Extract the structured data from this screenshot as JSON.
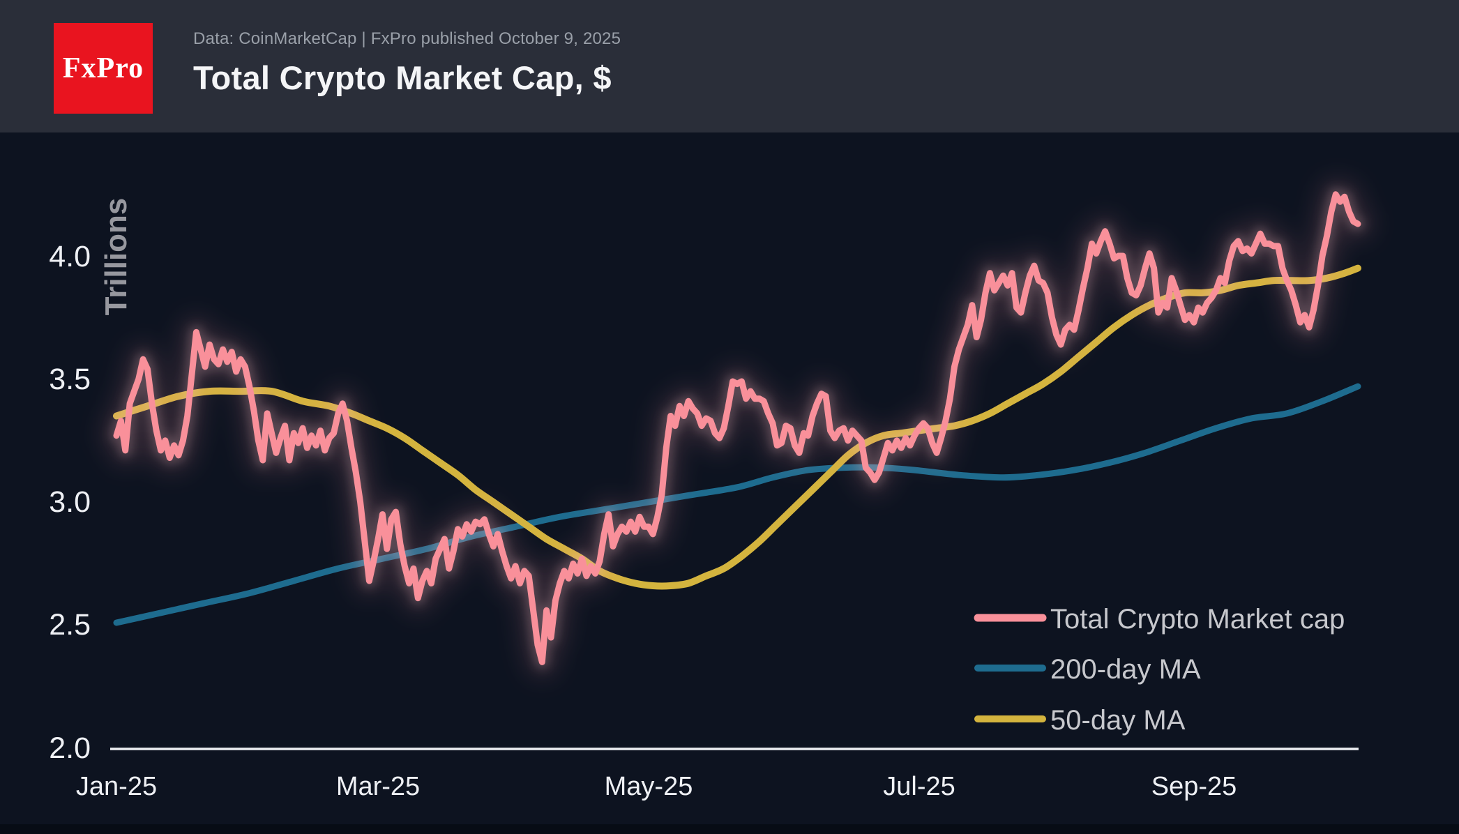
{
  "header": {
    "logo_text": "FxPro",
    "subtitle": "Data: CoinMarketCap | FxPro published October 9, 2025",
    "title": "Total Crypto Market Cap, $"
  },
  "colors": {
    "background": "#0d1320",
    "header_band": "#2a2e39",
    "footer_band": "#070c15",
    "logo_red": "#e9141f",
    "axis": "#edeff2",
    "tick_text": "#eef0f4",
    "unit_text": "#97989f",
    "legend_text": "#c7c8cd",
    "price_line": "#f9909a",
    "ma200_line": "#1e6c8f",
    "ma50_line": "#d4b43e"
  },
  "chart_data": {
    "type": "line",
    "title": "Total Crypto Market Cap, $",
    "unit_label": "Trillions",
    "x_start": "2025-01-01",
    "x_end": "2025-10-08",
    "x_range_days": 280,
    "x_tick_labels": [
      "Jan-25",
      "Mar-25",
      "May-25",
      "Jul-25",
      "Sep-25"
    ],
    "x_tick_days": [
      0,
      59,
      120,
      181,
      243
    ],
    "y_tick_labels": [
      "2.0",
      "2.5",
      "3.0",
      "3.5",
      "4.0"
    ],
    "y_tick_values": [
      2.0,
      2.5,
      3.0,
      3.5,
      4.0
    ],
    "ylim": [
      2.0,
      4.4
    ],
    "grid": false,
    "legend_position": "bottom-right",
    "series": [
      {
        "name": "Total Crypto Market cap",
        "color": "#f9909a",
        "kind": "daily",
        "glow": true,
        "values": [
          3.27,
          3.33,
          3.21,
          3.4,
          3.45,
          3.5,
          3.58,
          3.54,
          3.4,
          3.29,
          3.21,
          3.25,
          3.18,
          3.23,
          3.19,
          3.25,
          3.35,
          3.52,
          3.69,
          3.62,
          3.55,
          3.64,
          3.58,
          3.56,
          3.62,
          3.57,
          3.61,
          3.53,
          3.58,
          3.55,
          3.47,
          3.37,
          3.25,
          3.17,
          3.36,
          3.28,
          3.2,
          3.26,
          3.31,
          3.17,
          3.28,
          3.24,
          3.3,
          3.22,
          3.27,
          3.23,
          3.29,
          3.21,
          3.26,
          3.28,
          3.36,
          3.4,
          3.33,
          3.22,
          3.12,
          3.0,
          2.84,
          2.68,
          2.76,
          2.85,
          2.95,
          2.81,
          2.93,
          2.96,
          2.83,
          2.74,
          2.67,
          2.73,
          2.61,
          2.68,
          2.72,
          2.67,
          2.77,
          2.81,
          2.85,
          2.73,
          2.8,
          2.89,
          2.86,
          2.91,
          2.88,
          2.92,
          2.91,
          2.93,
          2.87,
          2.82,
          2.87,
          2.8,
          2.74,
          2.69,
          2.74,
          2.67,
          2.72,
          2.7,
          2.56,
          2.42,
          2.35,
          2.56,
          2.45,
          2.6,
          2.67,
          2.72,
          2.69,
          2.75,
          2.71,
          2.77,
          2.7,
          2.74,
          2.71,
          2.76,
          2.87,
          2.95,
          2.82,
          2.87,
          2.9,
          2.88,
          2.92,
          2.88,
          2.94,
          2.9,
          2.9,
          2.87,
          2.94,
          3.03,
          3.22,
          3.35,
          3.31,
          3.39,
          3.35,
          3.41,
          3.38,
          3.36,
          3.31,
          3.34,
          3.33,
          3.28,
          3.26,
          3.3,
          3.39,
          3.49,
          3.48,
          3.49,
          3.42,
          3.45,
          3.42,
          3.42,
          3.41,
          3.36,
          3.32,
          3.23,
          3.24,
          3.31,
          3.3,
          3.23,
          3.2,
          3.28,
          3.27,
          3.35,
          3.4,
          3.44,
          3.43,
          3.29,
          3.26,
          3.29,
          3.3,
          3.25,
          3.29,
          3.27,
          3.25,
          3.14,
          3.12,
          3.09,
          3.12,
          3.18,
          3.24,
          3.21,
          3.25,
          3.22,
          3.26,
          3.23,
          3.27,
          3.3,
          3.32,
          3.3,
          3.24,
          3.2,
          3.26,
          3.33,
          3.42,
          3.55,
          3.62,
          3.67,
          3.72,
          3.8,
          3.67,
          3.74,
          3.85,
          3.93,
          3.86,
          3.89,
          3.92,
          3.88,
          3.93,
          3.79,
          3.77,
          3.85,
          3.92,
          3.96,
          3.9,
          3.89,
          3.85,
          3.75,
          3.68,
          3.64,
          3.7,
          3.72,
          3.7,
          3.78,
          3.87,
          3.95,
          4.05,
          4.01,
          4.06,
          4.1,
          4.05,
          3.99,
          4.0,
          4.0,
          3.91,
          3.85,
          3.84,
          3.88,
          3.95,
          4.01,
          3.95,
          3.77,
          3.81,
          3.79,
          3.91,
          3.86,
          3.8,
          3.74,
          3.76,
          3.73,
          3.79,
          3.77,
          3.81,
          3.83,
          3.86,
          3.91,
          3.89,
          3.98,
          4.04,
          4.06,
          4.02,
          4.03,
          4.01,
          4.05,
          4.09,
          4.05,
          4.05,
          4.04,
          4.04,
          3.95,
          3.9,
          3.86,
          3.8,
          3.73,
          3.76,
          3.71,
          3.78,
          3.88,
          4.0,
          4.08,
          4.18,
          4.25,
          4.22,
          4.24,
          4.18,
          4.14,
          4.13
        ]
      },
      {
        "name": "200-day MA",
        "color": "#1e6c8f",
        "kind": "smooth",
        "glow": false,
        "points": [
          [
            0,
            2.51
          ],
          [
            10,
            2.55
          ],
          [
            20,
            2.59
          ],
          [
            30,
            2.63
          ],
          [
            40,
            2.68
          ],
          [
            50,
            2.73
          ],
          [
            60,
            2.77
          ],
          [
            70,
            2.81
          ],
          [
            80,
            2.86
          ],
          [
            90,
            2.9
          ],
          [
            100,
            2.94
          ],
          [
            110,
            2.97
          ],
          [
            120,
            3.0
          ],
          [
            130,
            3.03
          ],
          [
            140,
            3.06
          ],
          [
            148,
            3.1
          ],
          [
            156,
            3.13
          ],
          [
            164,
            3.14
          ],
          [
            172,
            3.14
          ],
          [
            180,
            3.13
          ],
          [
            190,
            3.11
          ],
          [
            200,
            3.1
          ],
          [
            208,
            3.11
          ],
          [
            216,
            3.13
          ],
          [
            224,
            3.16
          ],
          [
            232,
            3.2
          ],
          [
            240,
            3.25
          ],
          [
            248,
            3.3
          ],
          [
            256,
            3.34
          ],
          [
            264,
            3.36
          ],
          [
            272,
            3.41
          ],
          [
            280,
            3.47
          ]
        ]
      },
      {
        "name": "50-day MA",
        "color": "#d4b43e",
        "kind": "smooth",
        "glow": false,
        "points": [
          [
            0,
            3.35
          ],
          [
            7,
            3.39
          ],
          [
            14,
            3.43
          ],
          [
            21,
            3.45
          ],
          [
            28,
            3.45
          ],
          [
            35,
            3.45
          ],
          [
            42,
            3.41
          ],
          [
            48,
            3.39
          ],
          [
            53,
            3.36
          ],
          [
            57,
            3.33
          ],
          [
            61,
            3.3
          ],
          [
            65,
            3.26
          ],
          [
            69,
            3.21
          ],
          [
            73,
            3.16
          ],
          [
            77,
            3.11
          ],
          [
            81,
            3.05
          ],
          [
            85,
            3.0
          ],
          [
            89,
            2.95
          ],
          [
            93,
            2.9
          ],
          [
            97,
            2.85
          ],
          [
            101,
            2.81
          ],
          [
            105,
            2.77
          ],
          [
            109,
            2.72
          ],
          [
            113,
            2.69
          ],
          [
            117,
            2.67
          ],
          [
            121,
            2.66
          ],
          [
            125,
            2.66
          ],
          [
            129,
            2.67
          ],
          [
            133,
            2.7
          ],
          [
            137,
            2.73
          ],
          [
            141,
            2.78
          ],
          [
            145,
            2.84
          ],
          [
            149,
            2.91
          ],
          [
            153,
            2.98
          ],
          [
            157,
            3.05
          ],
          [
            161,
            3.12
          ],
          [
            165,
            3.19
          ],
          [
            169,
            3.24
          ],
          [
            173,
            3.27
          ],
          [
            177,
            3.28
          ],
          [
            181,
            3.29
          ],
          [
            185,
            3.3
          ],
          [
            189,
            3.31
          ],
          [
            193,
            3.33
          ],
          [
            197,
            3.36
          ],
          [
            201,
            3.4
          ],
          [
            205,
            3.44
          ],
          [
            209,
            3.48
          ],
          [
            213,
            3.53
          ],
          [
            217,
            3.59
          ],
          [
            221,
            3.65
          ],
          [
            225,
            3.71
          ],
          [
            229,
            3.76
          ],
          [
            233,
            3.8
          ],
          [
            237,
            3.83
          ],
          [
            241,
            3.85
          ],
          [
            245,
            3.85
          ],
          [
            249,
            3.86
          ],
          [
            253,
            3.88
          ],
          [
            257,
            3.89
          ],
          [
            261,
            3.9
          ],
          [
            265,
            3.9
          ],
          [
            269,
            3.9
          ],
          [
            273,
            3.91
          ],
          [
            277,
            3.93
          ],
          [
            280,
            3.95
          ]
        ]
      }
    ]
  }
}
